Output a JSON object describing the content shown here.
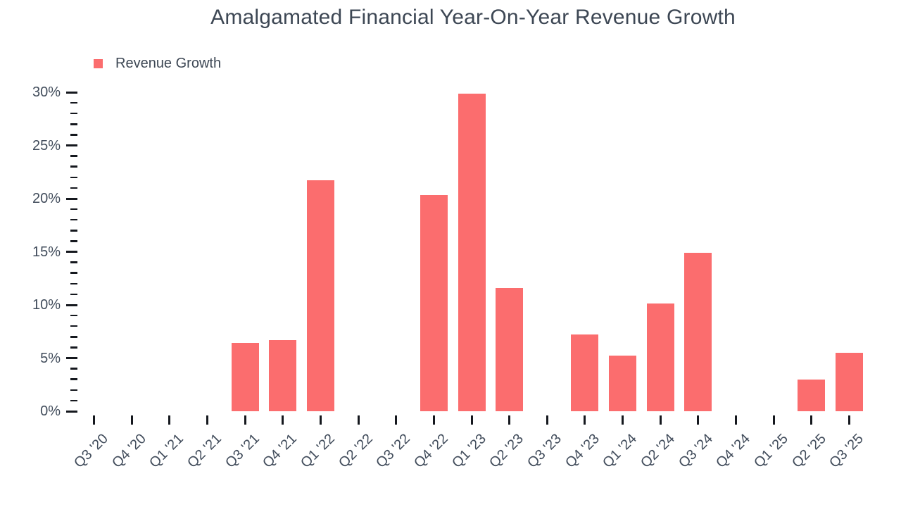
{
  "chart_data": {
    "type": "bar",
    "title": "Amalgamated Financial Year-On-Year Revenue Growth",
    "legend": [
      {
        "label": "Revenue Growth",
        "color": "#fb6d6e"
      }
    ],
    "legend_position": "top-left",
    "grid": false,
    "bar_color": "#fb6d6e",
    "categories": [
      "Q3 '20",
      "Q4 '20",
      "Q1 '21",
      "Q2 '21",
      "Q3 '21",
      "Q4 '21",
      "Q1 '22",
      "Q2 '22",
      "Q3 '22",
      "Q4 '22",
      "Q1 '23",
      "Q2 '23",
      "Q3 '23",
      "Q4 '23",
      "Q1 '24",
      "Q2 '24",
      "Q3 '24",
      "Q4 '24",
      "Q1 '25",
      "Q2 '25",
      "Q3 '25"
    ],
    "series": [
      {
        "name": "Revenue Growth",
        "values": [
          0,
          0,
          0,
          0,
          6.4,
          6.7,
          21.7,
          0,
          0,
          20.3,
          29.9,
          11.6,
          0,
          7.2,
          5.2,
          10.1,
          14.9,
          0,
          0,
          3.0,
          5.5
        ]
      }
    ],
    "xlabel": "",
    "ylabel": "",
    "y_axis": {
      "unit": "%",
      "min": 0,
      "max": 30,
      "major_step": 5,
      "minor_step": 1,
      "tick_labels": [
        "0%",
        "5%",
        "10%",
        "15%",
        "20%",
        "25%",
        "30%"
      ]
    }
  }
}
